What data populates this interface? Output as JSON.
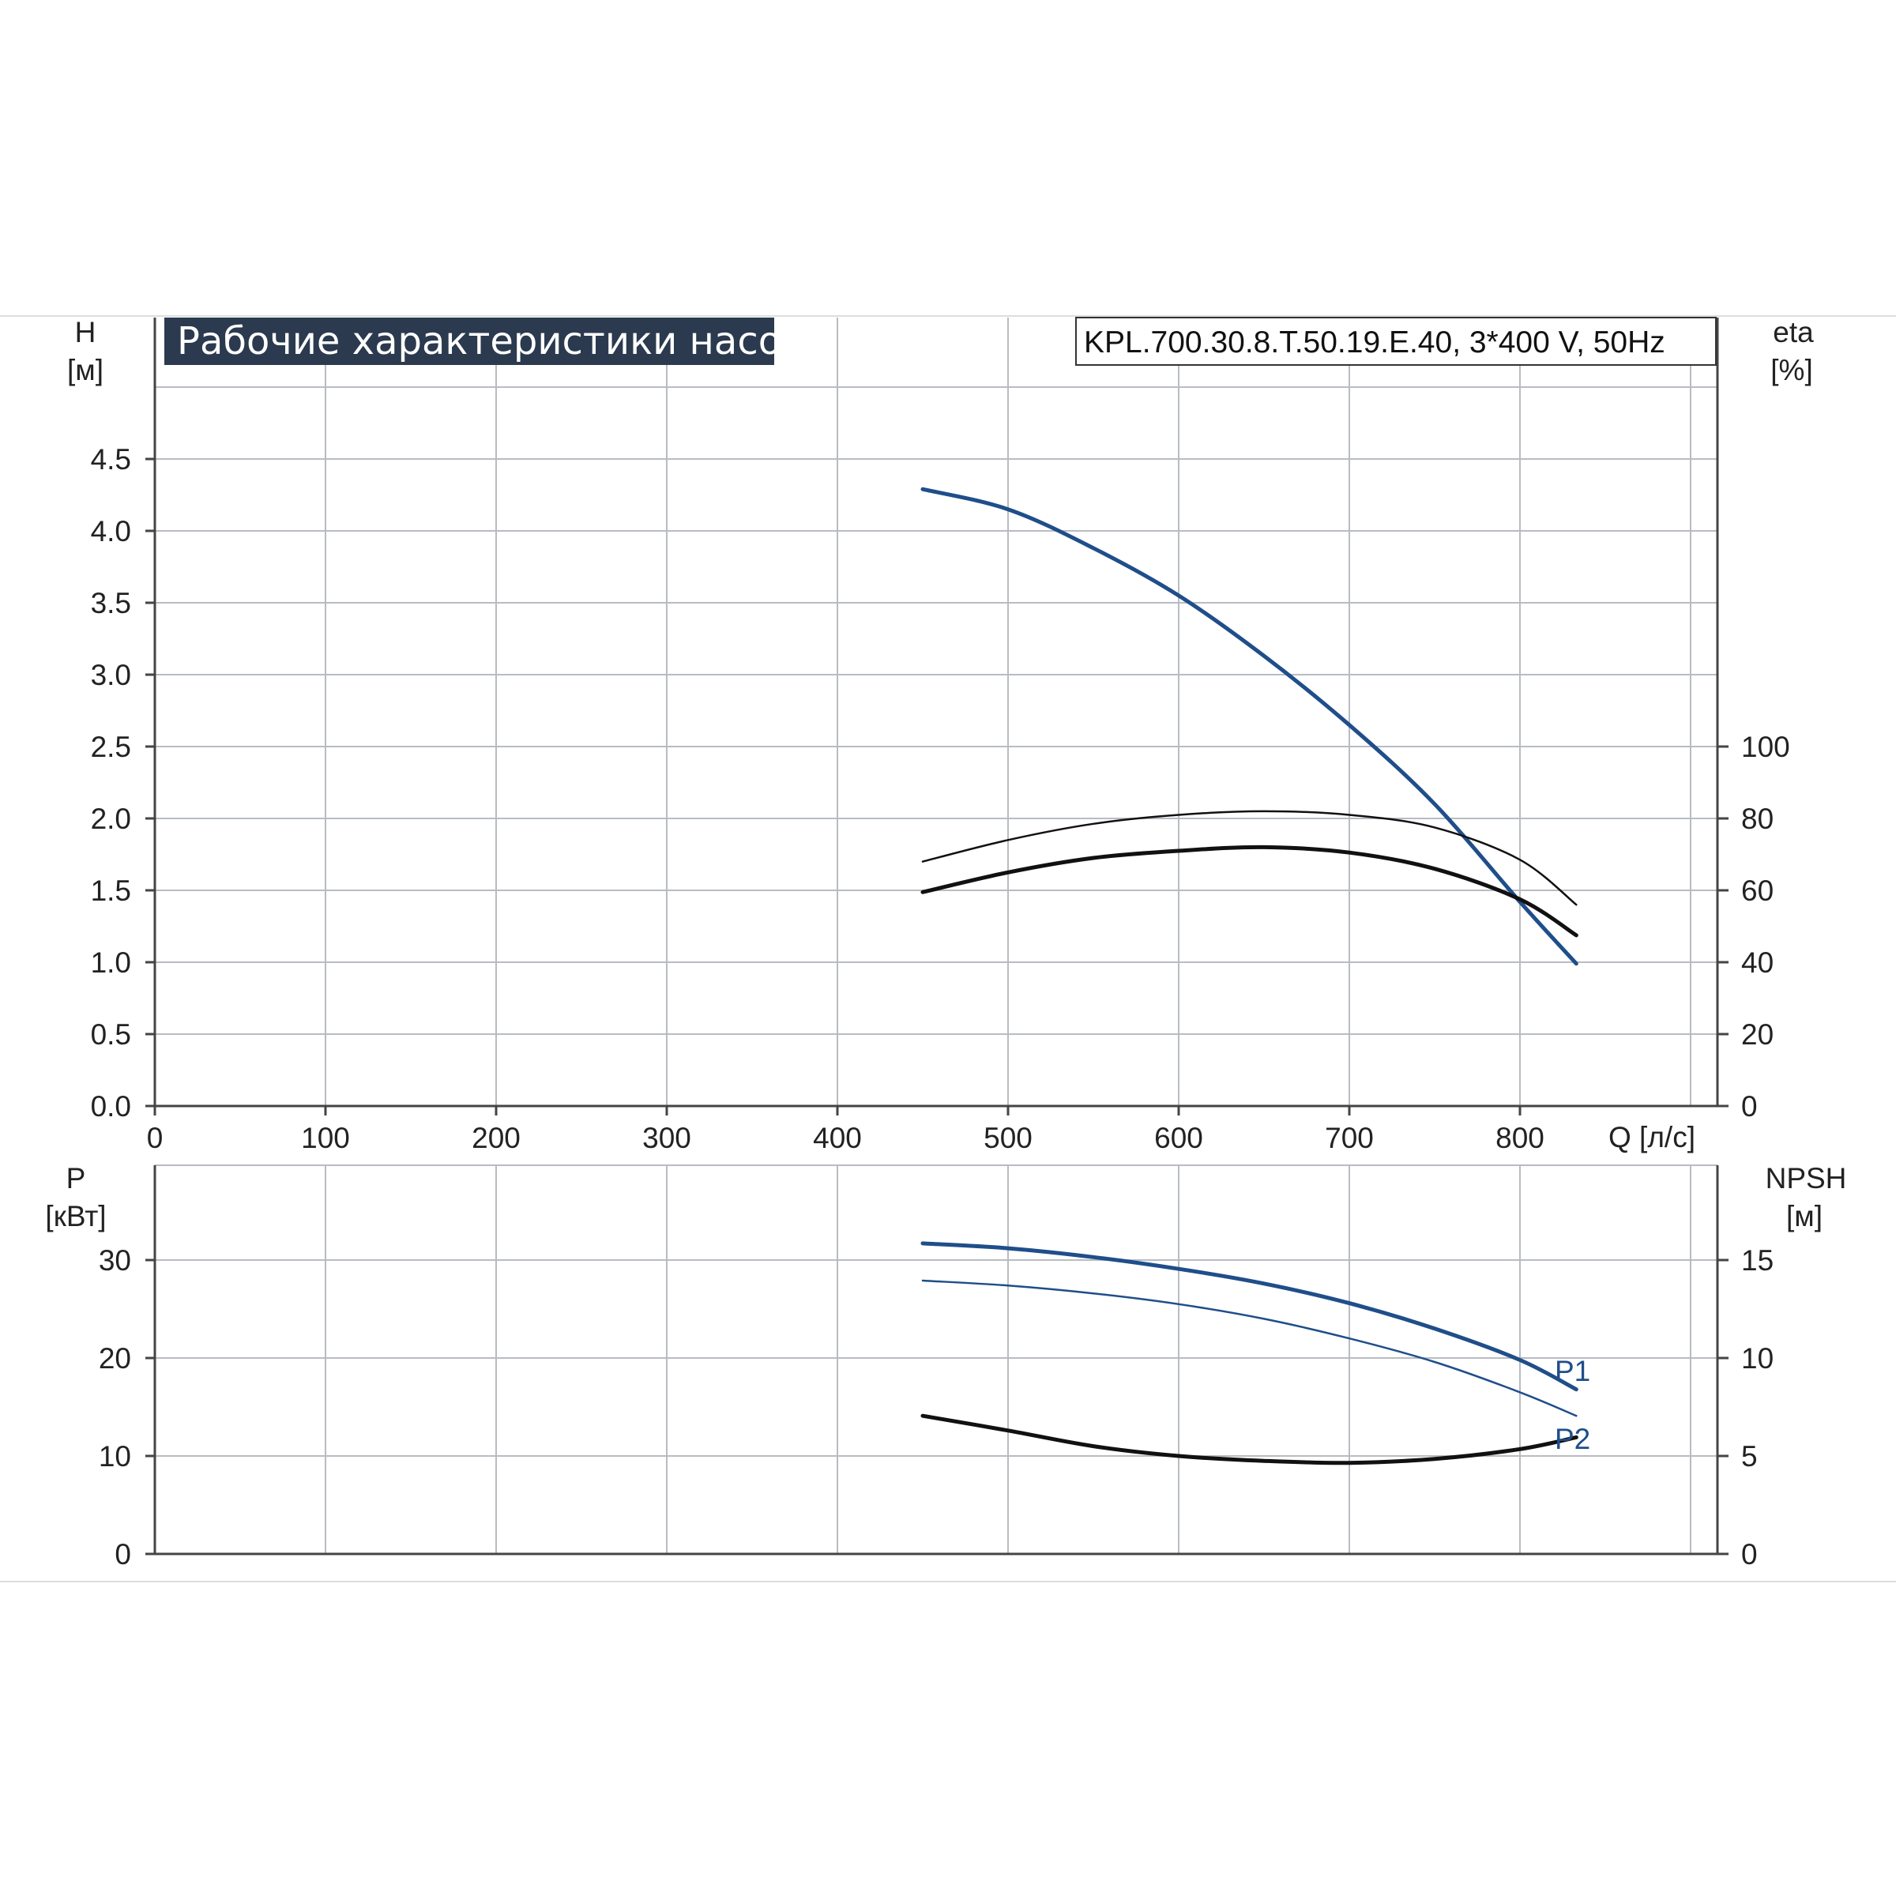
{
  "title": "Рабочие характеристики насоса",
  "model": "KPL.700.30.8.T.50.19.E.40, 3*400 V, 50Hz",
  "colors": {
    "grid": "#b8bcc2",
    "axis": "#444444",
    "title_bg": "#2b3a4e",
    "blue": "#1f4e8a",
    "black": "#111111",
    "frame_rule": "#dddddd"
  },
  "axis_units": {
    "h_symbol": "H",
    "h_unit": "[м]",
    "eta_symbol": "eta",
    "eta_unit": "[%]",
    "q_label": "Q [л/с]",
    "p_symbol": "P",
    "p_unit": "[кВт]",
    "npsh_symbol": "NPSH",
    "npsh_unit": "[м]"
  },
  "chart_data": [
    {
      "type": "line",
      "panel": "top",
      "xlabel": "Q [л/с]",
      "xlim": [
        0,
        830
      ],
      "xticks": [
        "0",
        "100",
        "200",
        "300",
        "400",
        "500",
        "600",
        "700",
        "800"
      ],
      "grid": true,
      "y_left": {
        "label": "H [м]",
        "lim": [
          0,
          5.0
        ],
        "ticks": [
          "0.0",
          "0.5",
          "1.0",
          "1.5",
          "2.0",
          "2.5",
          "3.0",
          "3.5",
          "4.0",
          "4.5"
        ]
      },
      "y_right": {
        "label": "eta [%]",
        "lim": [
          0,
          166.7
        ],
        "ticks": [
          "0",
          "20",
          "40",
          "60",
          "80",
          "100"
        ]
      },
      "series": [
        {
          "axis": "left",
          "color": "#1f4e8a",
          "width": 5,
          "x": [
            450,
            500,
            550,
            600,
            650,
            700,
            750,
            800,
            833
          ],
          "y": [
            4.29,
            4.15,
            3.88,
            3.55,
            3.13,
            2.65,
            2.1,
            1.42,
            0.99
          ]
        },
        {
          "axis": "right",
          "color": "#111111",
          "width": 2.5,
          "x": [
            450,
            500,
            550,
            600,
            650,
            700,
            750,
            800,
            833
          ],
          "y": [
            68,
            74,
            78.5,
            81,
            82,
            81,
            77.5,
            68.5,
            56
          ]
        },
        {
          "axis": "right",
          "color": "#111111",
          "width": 5,
          "x": [
            450,
            500,
            550,
            600,
            650,
            700,
            750,
            800,
            833
          ],
          "y": [
            59.5,
            65,
            69,
            71,
            72,
            70.5,
            66,
            57.5,
            47.5
          ]
        }
      ]
    },
    {
      "type": "line",
      "panel": "bottom",
      "xlim": [
        0,
        830
      ],
      "grid": true,
      "y_left": {
        "label": "P [кВт]",
        "lim": [
          0,
          40
        ],
        "ticks": [
          "0",
          "10",
          "20",
          "30"
        ]
      },
      "y_right": {
        "label": "NPSH [м]",
        "lim": [
          0,
          20
        ],
        "ticks": [
          "0",
          "5",
          "10",
          "15"
        ]
      },
      "annotations": [
        "P1",
        "P2"
      ],
      "series": [
        {
          "name": "P1",
          "axis": "left",
          "color": "#1f4e8a",
          "width": 5,
          "x": [
            450,
            500,
            550,
            600,
            650,
            700,
            750,
            800,
            833
          ],
          "y": [
            31.7,
            31.2,
            30.3,
            29.1,
            27.6,
            25.6,
            23.0,
            19.8,
            16.8
          ]
        },
        {
          "name": "P2",
          "axis": "left",
          "color": "#1f4e8a",
          "width": 2.5,
          "x": [
            450,
            500,
            550,
            600,
            650,
            700,
            750,
            800,
            833
          ],
          "y": [
            27.9,
            27.4,
            26.6,
            25.5,
            24.0,
            22.0,
            19.6,
            16.5,
            14.1
          ]
        },
        {
          "axis": "right",
          "color": "#111111",
          "width": 5,
          "x": [
            450,
            500,
            550,
            600,
            650,
            700,
            750,
            800,
            833
          ],
          "y": [
            7.05,
            6.3,
            5.5,
            5.0,
            4.75,
            4.65,
            4.85,
            5.35,
            5.95
          ]
        }
      ]
    }
  ]
}
